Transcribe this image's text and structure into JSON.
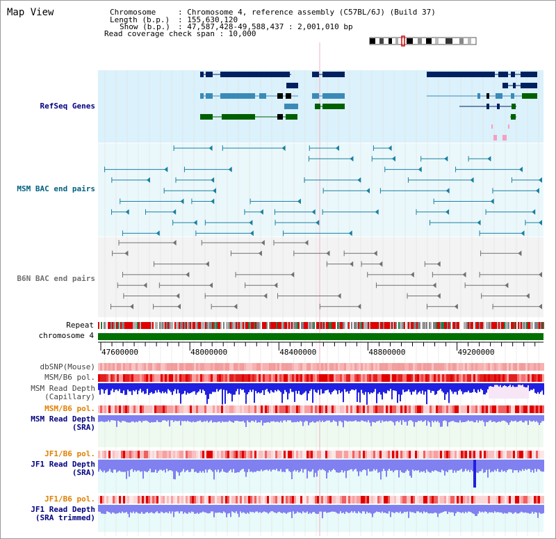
{
  "view_title": "Map View",
  "info": {
    "chromosome_key": "Chromosome",
    "chromosome_val": ": Chromosome 4, reference assembly (C57BL/6J) (Build 37)",
    "length_key": "Length (b.p.)",
    "length_val": ": 155,630,120",
    "show_key": "Show (b.p.)",
    "show_val": ": 47,587,428-49,588,437 : 2,001,010 bp",
    "coverage_line": "Read coverage check span : 10,000"
  },
  "tracks": {
    "refseq": "RefSeq Genes",
    "msm_bac": "MSM BAC end pairs",
    "b6n_bac": "B6N BAC end pairs",
    "repeat": "Repeat",
    "chromosome": "chromosome 4",
    "dbsnp": "dbSNP(Mouse)",
    "msm_b6_pol_1": "MSM/B6 pol.",
    "msm_depth_cap_1": "MSM Read Depth",
    "msm_depth_cap_2": "(Capillary)",
    "msm_b6_pol_2": "MSM/B6 pol.",
    "msm_depth_sra_1": "MSM Read Depth",
    "msm_depth_sra_2": "(SRA)",
    "jf1_pol_1": "JF1/B6 pol.",
    "jf1_depth_1": "JF1 Read Depth",
    "jf1_depth_2": "(SRA)",
    "jf1_pol_2": "JF1/B6 pol.",
    "jf1_trim_1": "JF1 Read Depth",
    "jf1_trim_2": "(SRA trimmed)"
  },
  "axis": {
    "start": 47587428,
    "end": 49588437,
    "ticks": [
      47600000,
      48000000,
      48400000,
      48800000,
      49200000
    ],
    "tick_labels": [
      "47600000",
      "48000000",
      "48400000",
      "48800000",
      "49200000"
    ]
  },
  "colors": {
    "label_navy": "#000080",
    "label_teal": "#006080",
    "label_gray": "#707070",
    "label_orange": "#e08000",
    "refseq_bg": "#dbf1fb",
    "bac_bg": "#eaf8fb",
    "b6n_bg": "#f3f3f3",
    "gene_dark": "#002060",
    "gene_light": "#3a8ab8",
    "gene_green": "#006000",
    "msm_teal": "#1a7fa0",
    "b6n_gray": "#707070",
    "chromosome_green": "#007000",
    "depth_blue": "#2020e0",
    "sra_blue": "#8080f0"
  }
}
